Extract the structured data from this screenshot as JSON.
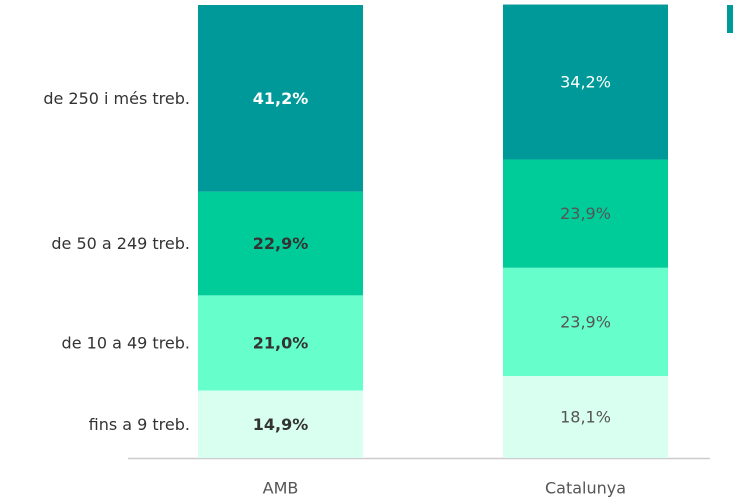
{
  "chart_data": {
    "type": "stacked_bar",
    "categories": [
      "AMB",
      "Catalunya"
    ],
    "series": [
      {
        "name": "fins a 9 treb.",
        "color": "#d9fff0",
        "values": [
          14.9,
          18.1
        ],
        "value_labels": [
          "14,9%",
          "18,1%"
        ]
      },
      {
        "name": "de 10 a 49 treb.",
        "color": "#66ffcc",
        "values": [
          21.0,
          23.9
        ],
        "value_labels": [
          "21,0%",
          "23,9%"
        ]
      },
      {
        "name": "de 50 a 249 treb.",
        "color": "#00cc99",
        "values": [
          22.9,
          23.9
        ],
        "value_labels": [
          "22,9%",
          "23,9%"
        ]
      },
      {
        "name": "de 250 i més treb.",
        "color": "#009999",
        "values": [
          41.2,
          34.2
        ],
        "value_labels": [
          "41,2%",
          "34,2%"
        ]
      }
    ]
  }
}
